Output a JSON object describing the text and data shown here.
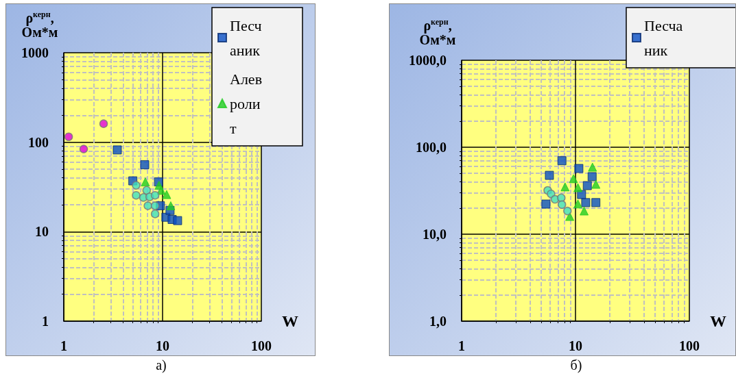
{
  "chart_data": [
    {
      "type": "scatter",
      "xlabel": "W",
      "ylabel": "ρ$^{керн}$, Ом*м",
      "annotations": [
        "а)"
      ],
      "xlim": [
        1,
        100
      ],
      "ylim": [
        1,
        1000
      ],
      "xticks": [
        1,
        10,
        100
      ],
      "yticks": [
        1,
        10,
        100,
        1000
      ],
      "log": "xy",
      "grid": true,
      "legend": "top right",
      "series": [
        {
          "name": "Песчаник",
          "color": "#0a4fc4",
          "marker": "square",
          "x": [
            3.48,
            6.6,
            5.0,
            9.1,
            10.8,
            12.5,
            14.2,
            9.5,
            11.9
          ],
          "values": [
            82,
            56,
            37,
            36,
            14.5,
            13.7,
            13.3,
            19.5,
            17.3
          ]
        },
        {
          "name": "Алевролит",
          "color": "#22cc22",
          "marker": "triangle",
          "x": [
            6.7,
            9.2,
            9.7,
            11,
            12.1
          ],
          "values": [
            36,
            33,
            29,
            26,
            19.5
          ]
        },
        {
          "color": "#40e0c0",
          "marker": "circle",
          "x": [
            5.4,
            6.9,
            5.4,
            6.4,
            7.4,
            8.4,
            7.1,
            8.4,
            8.4
          ],
          "values": [
            33,
            29,
            25.5,
            24.1,
            24.5,
            25.5,
            19.5,
            19.5,
            15.8
          ]
        },
        {
          "color": "#e000e0",
          "marker": "circle",
          "x": [
            1.12,
            1.59,
            2.53
          ],
          "values": [
            115,
            84,
            161
          ]
        }
      ]
    },
    {
      "type": "scatter",
      "xlabel": "W",
      "ylabel": "ρ$^{керн}$, Ом*м",
      "annotations": [
        "б)"
      ],
      "xlim": [
        1,
        100
      ],
      "ylim": [
        1,
        1000
      ],
      "xticks": [
        1,
        10,
        100
      ],
      "yticks": [
        {
          "value": 1,
          "label": "1,0"
        },
        {
          "value": 10,
          "label": "10,0"
        },
        {
          "value": 100,
          "label": "100,0"
        },
        {
          "value": 1000,
          "label": "1000,0"
        }
      ],
      "log": "xy",
      "grid": true,
      "legend": "top right",
      "series": [
        {
          "name": "Песчаник",
          "color": "#0a4fc4",
          "marker": "square",
          "x": [
            7.6,
            5.9,
            10.7,
            5.5,
            12.7,
            14.0,
            12.3,
            15.1,
            11.3
          ],
          "values": [
            70,
            47.5,
            57,
            22.2,
            36.2,
            45.9,
            23.1,
            23.1,
            28.6
          ]
        },
        {
          "color": "#22cc22",
          "marker": "triangle",
          "x": [
            14.1,
            9.6,
            15.1,
            8.1,
            10.5,
            10.5,
            11.9,
            8.9
          ],
          "values": [
            59,
            43.5,
            37.5,
            35,
            34.3,
            22.3,
            18.5,
            16
          ]
        },
        {
          "color": "#40e0c0",
          "marker": "circle",
          "x": [
            5.7,
            6.1,
            6.6,
            7.5,
            7.6,
            8.5
          ],
          "values": [
            31.9,
            29.1,
            25.2,
            26.2,
            21.9,
            18.5
          ]
        }
      ]
    }
  ]
}
